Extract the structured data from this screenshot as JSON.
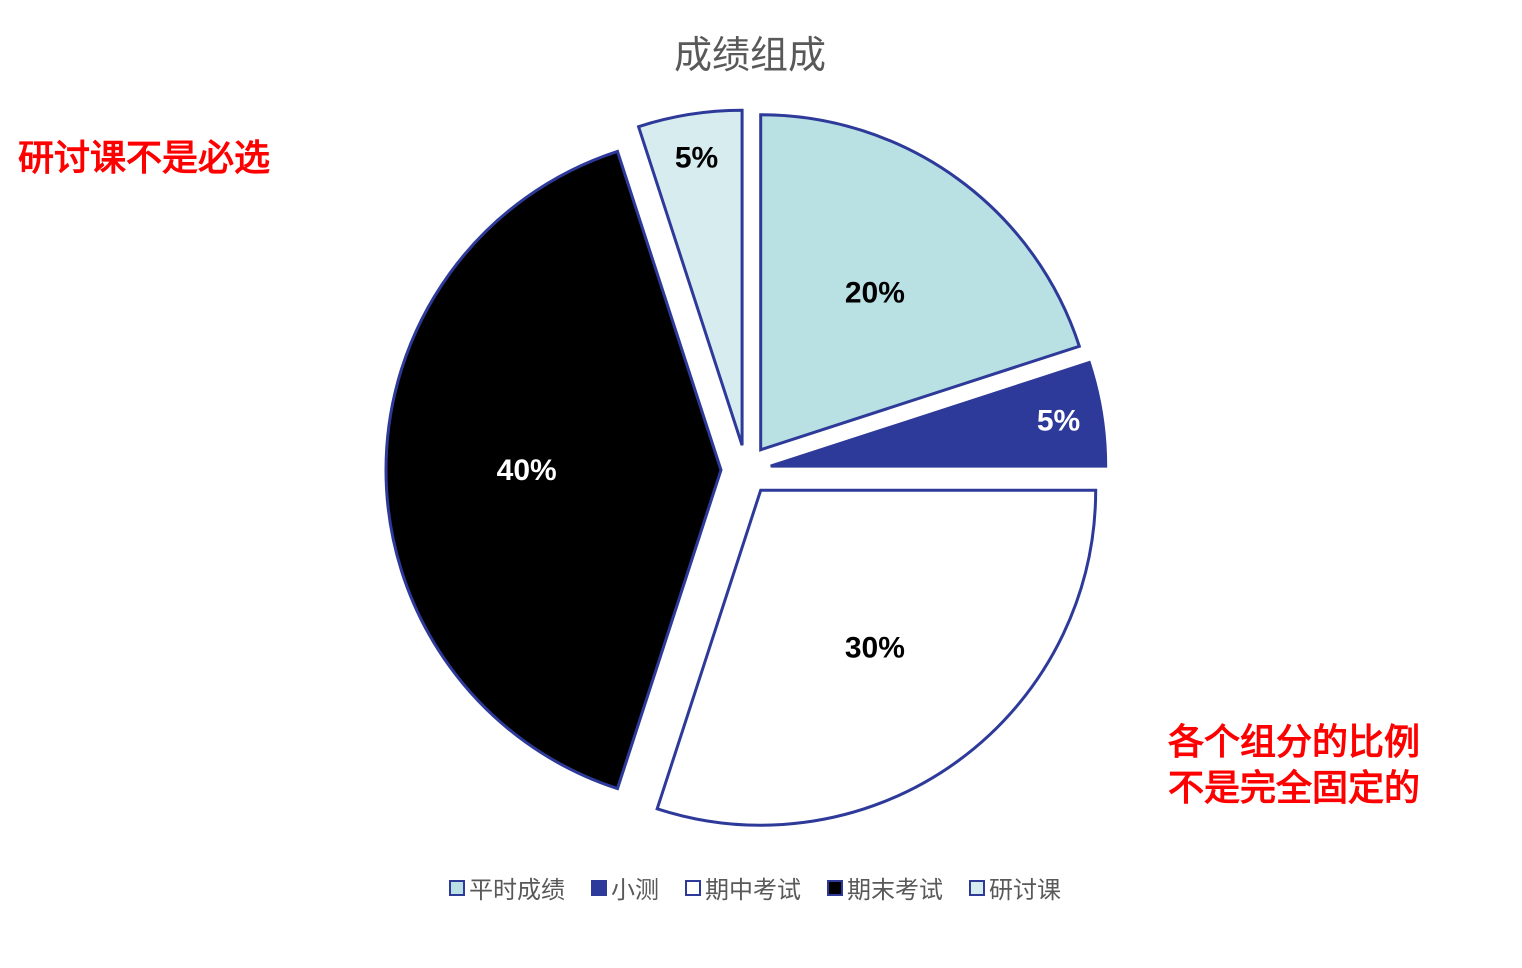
{
  "chart_data": {
    "type": "pie",
    "title": "成绩组成",
    "categories": [
      "平时成绩",
      "小测",
      "期中考试",
      "期末考试",
      "研讨课"
    ],
    "values": [
      20,
      5,
      30,
      40,
      5
    ],
    "data_labels": [
      "20%",
      "5%",
      "30%",
      "40%",
      "5%"
    ],
    "colors": [
      "#b9e0e3",
      "#2e3a99",
      "#ffffff",
      "#000000",
      "#d6ecee"
    ],
    "label_colors": [
      "#000000",
      "#ffffff",
      "#000000",
      "#ffffff",
      "#000000"
    ],
    "edge_color": "#2e3a99",
    "exploded": true,
    "legend_position": "bottom"
  },
  "annotations": {
    "left": "研讨课不是必选",
    "right_line1": "各个组分的比例",
    "right_line2": "不是完全固定的"
  }
}
